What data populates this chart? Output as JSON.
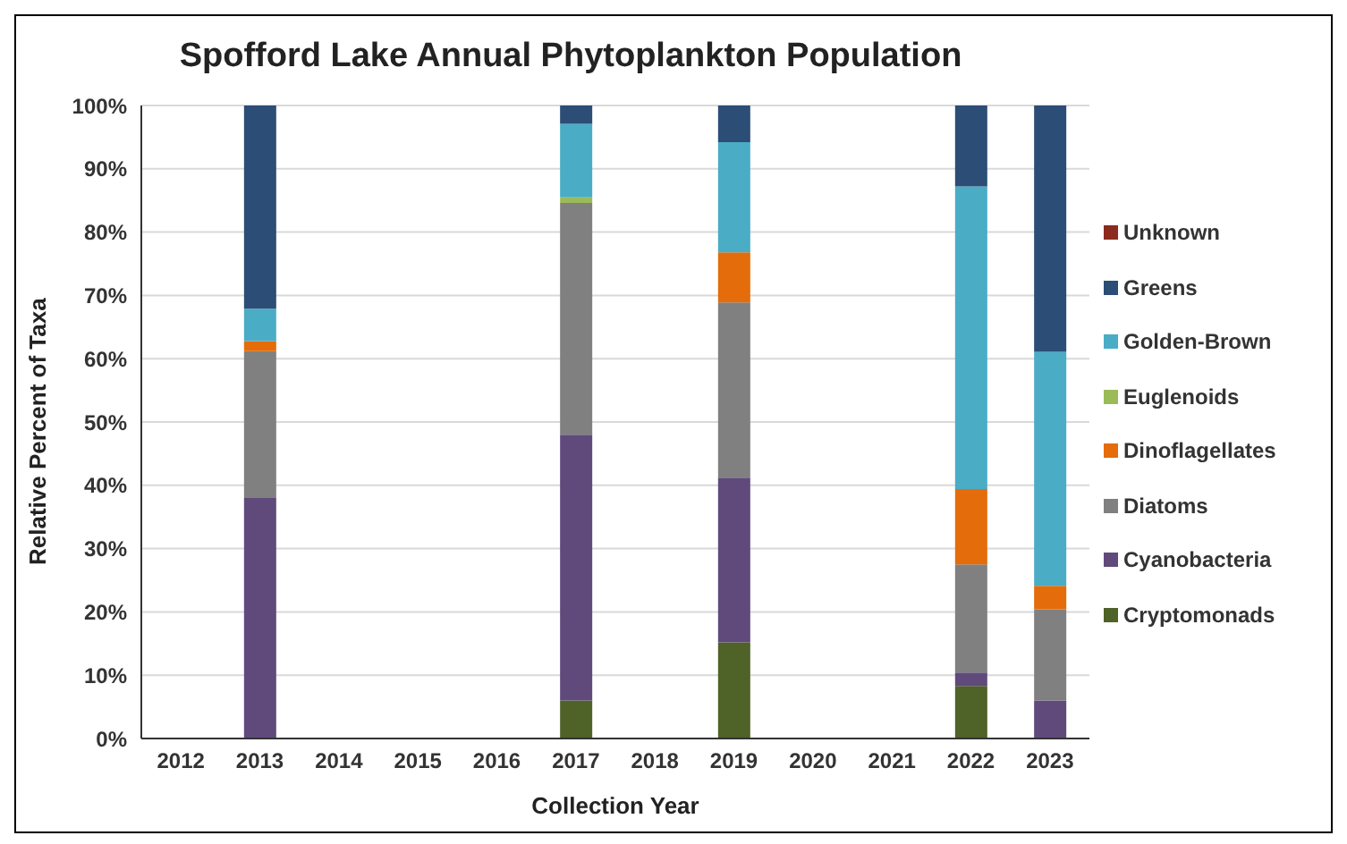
{
  "chart_data": {
    "type": "bar",
    "stacked": true,
    "title": "Spofford Lake Annual Phytoplankton Population",
    "xlabel": "Collection Year",
    "ylabel": "Relative Percent of Taxa",
    "categories": [
      "2012",
      "2013",
      "2014",
      "2015",
      "2016",
      "2017",
      "2018",
      "2019",
      "2020",
      "2021",
      "2022",
      "2023"
    ],
    "series": [
      {
        "name": "Cryptomonads",
        "color": "#4f6228",
        "values": [
          0,
          0,
          0,
          0,
          0,
          6,
          0,
          15.2,
          0,
          0,
          8.3,
          0
        ]
      },
      {
        "name": "Cyanobacteria",
        "color": "#604a7b",
        "values": [
          0,
          38,
          0,
          0,
          0,
          42,
          0,
          26,
          0,
          0,
          2.1,
          6
        ]
      },
      {
        "name": "Diatoms",
        "color": "#808080",
        "values": [
          0,
          23.2,
          0,
          0,
          0,
          36.6,
          0,
          27.7,
          0,
          0,
          17.1,
          14.4
        ]
      },
      {
        "name": "Dinoflagellates",
        "color": "#e46c0a",
        "values": [
          0,
          1.6,
          0,
          0,
          0,
          0,
          0,
          7.9,
          0,
          0,
          11.9,
          3.7
        ]
      },
      {
        "name": "Euglenoids",
        "color": "#9bbb59",
        "values": [
          0,
          0,
          0,
          0,
          0,
          0.9,
          0,
          0,
          0,
          0,
          0,
          0
        ]
      },
      {
        "name": "Golden-Brown",
        "color": "#4bacc6",
        "values": [
          0,
          5.1,
          0,
          0,
          0,
          11.6,
          0,
          17.4,
          0,
          0,
          47.8,
          37
        ]
      },
      {
        "name": "Greens",
        "color": "#2c4d75",
        "values": [
          0,
          32.1,
          0,
          0,
          0,
          2.9,
          0,
          5.8,
          0,
          0,
          12.8,
          38.9
        ]
      },
      {
        "name": "Unknown",
        "color": "#8b2a1e",
        "values": [
          0,
          0,
          0,
          0,
          0,
          0,
          0,
          0,
          0,
          0,
          0,
          0
        ]
      }
    ],
    "ylim": [
      0,
      100
    ],
    "yticks": [
      {
        "value": 0,
        "label": "0%"
      },
      {
        "value": 10,
        "label": "10%"
      },
      {
        "value": 20,
        "label": "20%"
      },
      {
        "value": 30,
        "label": "30%"
      },
      {
        "value": 40,
        "label": "40%"
      },
      {
        "value": 50,
        "label": "50%"
      },
      {
        "value": 60,
        "label": "60%"
      },
      {
        "value": 70,
        "label": "70%"
      },
      {
        "value": 80,
        "label": "80%"
      },
      {
        "value": 90,
        "label": "90%"
      },
      {
        "value": 100,
        "label": "100%"
      }
    ],
    "grid": "y",
    "legend": "right"
  }
}
